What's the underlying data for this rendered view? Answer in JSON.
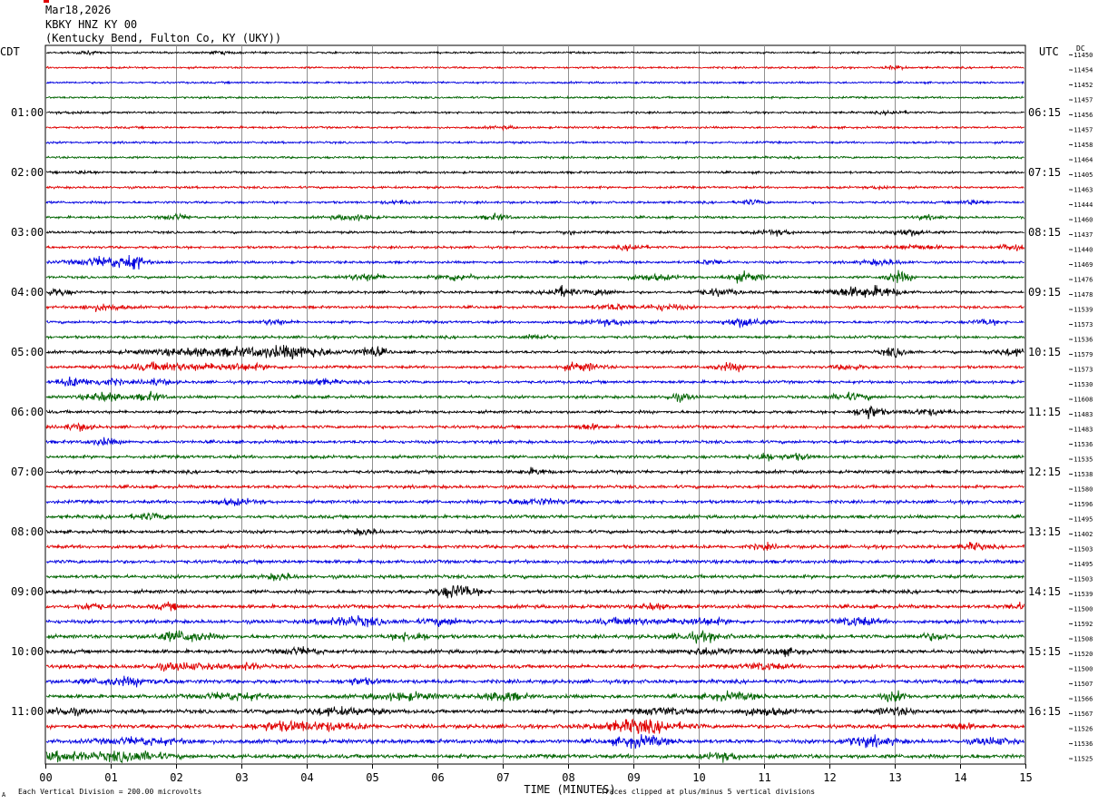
{
  "header": {
    "date": "Mar18,2026",
    "station": "KBKY HNZ KY 00",
    "location": "(Kentucky Bend, Fulton Co, KY (UKY))"
  },
  "footer": {
    "scale": "Each Vertical Division =  200.00 microvolts",
    "clip": "Traces clipped at plus/minus 5 vertical divisions",
    "mark": "A"
  },
  "chart_data": {
    "type": "line",
    "title": "",
    "xlabel": "TIME (MINUTES)",
    "ylabel": "",
    "xlim": [
      0,
      15
    ],
    "x_ticks": [
      "00",
      "01",
      "02",
      "03",
      "04",
      "05",
      "06",
      "07",
      "08",
      "09",
      "10",
      "11",
      "12",
      "13",
      "14",
      "15"
    ],
    "left_timezone": "CDT",
    "right_timezone": "UTC",
    "dc_label": "DC",
    "grid": true,
    "trace_colors": [
      "#000000",
      "#e00000",
      "#0000e0",
      "#006400"
    ],
    "left_hour_labels": [
      "01:00",
      "02:00",
      "03:00",
      "04:00",
      "05:00",
      "06:00",
      "07:00",
      "08:00",
      "09:00",
      "10:00",
      "11:00"
    ],
    "right_hour_labels": [
      "06:15",
      "07:15",
      "08:15",
      "09:15",
      "10:15",
      "11:15",
      "12:15",
      "13:15",
      "14:15",
      "15:15",
      "16:15"
    ],
    "dc_offsets": [
      "-11450",
      "-11454",
      "-11452",
      "-11457",
      "-11456",
      "-11457",
      "-11458",
      "-11464",
      "-11405",
      "-11463",
      "-11444",
      "-11460",
      "-11437",
      "-11440",
      "-11469",
      "-11476",
      "-11478",
      "-11539",
      "-11573",
      "-11536",
      "-11579",
      "-11573",
      "-11530",
      "-11608",
      "-11483",
      "-11483",
      "-11536",
      "-11535",
      "-11538",
      "-11580",
      "-11596",
      "-11495",
      "-11402",
      "-11503",
      "-11495",
      "-11503",
      "-11539",
      "-11500",
      "-11592",
      "-11508",
      "-11520",
      "-11500",
      "-11507",
      "-11566",
      "-11567",
      "-11526",
      "-11536",
      "-11525"
    ],
    "event_bursts": [
      [
        [
          0.6,
          0.15,
          0.3
        ],
        [
          2.7,
          0.2,
          0.2
        ]
      ],
      [
        [
          13,
          0.15,
          0.3
        ]
      ],
      [],
      [],
      [
        [
          0.5,
          0.2,
          0.2
        ],
        [
          13,
          0.2,
          0.3
        ]
      ],
      [
        [
          7,
          0.2,
          0.2
        ]
      ],
      [],
      [],
      [
        [
          0.6,
          0.2,
          0.2
        ]
      ],
      [
        [
          12.8,
          0.15,
          0.3
        ]
      ],
      [
        [
          5.4,
          0.2,
          0.3
        ],
        [
          10.8,
          0.2,
          0.4
        ],
        [
          14.2,
          0.2,
          0.4
        ]
      ],
      [
        [
          2,
          0.2,
          0.5
        ],
        [
          4.7,
          0.3,
          0.5
        ],
        [
          6.9,
          0.2,
          0.5
        ],
        [
          13.5,
          0.2,
          0.3
        ]
      ],
      [
        [
          8,
          0.1,
          0.4
        ],
        [
          11.2,
          0.3,
          0.4
        ],
        [
          13.2,
          0.3,
          0.6
        ]
      ],
      [
        [
          9,
          0.2,
          0.5
        ],
        [
          13.3,
          0.4,
          0.4
        ],
        [
          14.8,
          0.2,
          0.6
        ]
      ],
      [
        [
          1,
          0.5,
          1.0
        ],
        [
          1.35,
          0.1,
          1.6
        ],
        [
          10.2,
          0.2,
          0.4
        ],
        [
          12.8,
          0.3,
          0.5
        ]
      ],
      [
        [
          4.9,
          0.3,
          0.6
        ],
        [
          6.3,
          0.3,
          0.6
        ],
        [
          9.3,
          0.4,
          0.5
        ],
        [
          10.7,
          0.3,
          0.8
        ],
        [
          13.05,
          0.2,
          1.0
        ]
      ],
      [
        [
          0.2,
          0.2,
          0.6
        ],
        [
          7.9,
          0.2,
          1.1
        ],
        [
          8.5,
          0.2,
          0.6
        ],
        [
          10.3,
          0.3,
          0.6
        ],
        [
          12.3,
          0.4,
          0.8
        ],
        [
          12.8,
          0.3,
          0.8
        ]
      ],
      [
        [
          0.9,
          0.3,
          0.6
        ],
        [
          8.7,
          0.3,
          0.5
        ],
        [
          9.5,
          0.3,
          0.5
        ]
      ],
      [
        [
          3.5,
          0.2,
          0.5
        ],
        [
          8.7,
          0.4,
          0.5
        ],
        [
          10.7,
          0.3,
          0.9
        ],
        [
          14.4,
          0.2,
          0.5
        ]
      ],
      [
        [
          7.5,
          0.2,
          0.5
        ]
      ],
      [
        [
          2.5,
          1.0,
          0.7
        ],
        [
          3.8,
          0.6,
          1.0
        ],
        [
          5,
          0.2,
          1.0
        ],
        [
          13,
          0.2,
          0.8
        ],
        [
          14.8,
          0.3,
          0.6
        ]
      ],
      [
        [
          1.8,
          0.6,
          0.7
        ],
        [
          2.9,
          0.5,
          0.6
        ],
        [
          8.2,
          0.3,
          0.7
        ],
        [
          10.5,
          0.3,
          0.6
        ],
        [
          12.3,
          0.2,
          0.5
        ]
      ],
      [
        [
          0.4,
          0.2,
          0.8
        ],
        [
          1.7,
          0.2,
          0.6
        ],
        [
          0.9,
          0.3,
          0.6
        ],
        [
          4.2,
          0.3,
          0.5
        ]
      ],
      [
        [
          0.9,
          0.3,
          0.8
        ],
        [
          1.6,
          0.2,
          0.7
        ],
        [
          9.7,
          0.2,
          0.6
        ],
        [
          12.3,
          0.3,
          0.6
        ]
      ],
      [
        [
          12.6,
          0.2,
          1.3
        ],
        [
          13.5,
          0.3,
          0.5
        ]
      ],
      [
        [
          0.5,
          0.2,
          0.6
        ],
        [
          8.3,
          0.2,
          0.5
        ]
      ],
      [
        [
          0.9,
          0.2,
          0.6
        ]
      ],
      [
        [
          11,
          0.2,
          0.7
        ],
        [
          11.5,
          0.2,
          0.5
        ]
      ],
      [
        [
          7.5,
          0.2,
          0.5
        ]
      ],
      [],
      [
        [
          2.9,
          0.3,
          0.5
        ],
        [
          7.5,
          0.5,
          0.5
        ]
      ],
      [
        [
          1.6,
          0.3,
          0.5
        ]
      ],
      [
        [
          4.9,
          0.2,
          0.5
        ]
      ],
      [
        [
          14.2,
          0.2,
          0.6
        ],
        [
          11,
          0.2,
          0.4
        ]
      ],
      [],
      [
        [
          3.6,
          0.2,
          0.6
        ]
      ],
      [
        [
          6.3,
          0.3,
          1.2
        ]
      ],
      [
        [
          0.7,
          0.2,
          0.6
        ],
        [
          1.9,
          0.2,
          0.5
        ],
        [
          9.3,
          0.2,
          0.5
        ],
        [
          14.9,
          0.2,
          0.5
        ]
      ],
      [
        [
          4.7,
          0.5,
          0.8
        ],
        [
          6.1,
          0.3,
          0.6
        ],
        [
          8.9,
          0.5,
          0.5
        ],
        [
          10,
          0.4,
          0.6
        ],
        [
          12.4,
          0.3,
          0.8
        ]
      ],
      [
        [
          2.1,
          0.4,
          1.0
        ],
        [
          5.6,
          0.3,
          0.7
        ],
        [
          10,
          0.4,
          0.7
        ],
        [
          13.6,
          0.3,
          0.5
        ]
      ],
      [
        [
          3.9,
          0.3,
          0.6
        ],
        [
          10.2,
          0.4,
          0.6
        ],
        [
          11.3,
          0.3,
          0.5
        ]
      ],
      [
        [
          2.1,
          0.5,
          0.6
        ],
        [
          3.1,
          0.2,
          0.6
        ],
        [
          11,
          0.3,
          0.6
        ]
      ],
      [
        [
          1.2,
          0.6,
          0.6
        ],
        [
          4.8,
          0.3,
          0.5
        ]
      ],
      [
        [
          2.9,
          0.5,
          0.6
        ],
        [
          5.5,
          0.5,
          0.6
        ],
        [
          7,
          0.3,
          0.8
        ],
        [
          10.5,
          0.4,
          0.6
        ],
        [
          13,
          0.2,
          0.8
        ]
      ],
      [
        [
          0.3,
          0.3,
          0.6
        ],
        [
          4.5,
          0.6,
          0.6
        ],
        [
          9.5,
          0.4,
          0.6
        ],
        [
          11,
          0.4,
          0.6
        ],
        [
          13,
          0.3,
          0.6
        ]
      ],
      [
        [
          3.6,
          0.5,
          0.7
        ],
        [
          4.4,
          0.5,
          0.6
        ],
        [
          9.1,
          0.6,
          1.2
        ],
        [
          14,
          0.2,
          0.6
        ]
      ],
      [
        [
          1.5,
          0.6,
          0.6
        ],
        [
          9.1,
          0.4,
          1.0
        ],
        [
          12.6,
          0.4,
          0.8
        ],
        [
          14.5,
          0.3,
          0.6
        ]
      ],
      [
        [
          0.3,
          0.4,
          0.8
        ],
        [
          1.3,
          0.5,
          0.9
        ],
        [
          10.4,
          0.3,
          0.6
        ]
      ]
    ]
  }
}
